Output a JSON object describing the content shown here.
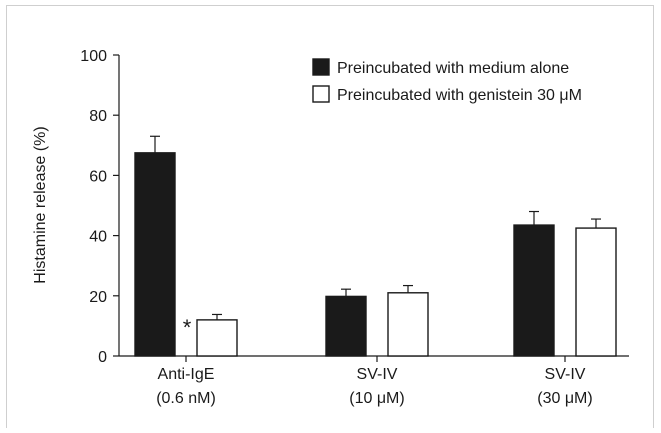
{
  "chart_data": {
    "type": "bar",
    "title": "",
    "ylabel": "Histamine release (%)",
    "xlabel": "",
    "ylim": [
      0,
      100
    ],
    "yticks": [
      "0",
      "20",
      "40",
      "60",
      "80",
      "100"
    ],
    "categories": [
      {
        "line1": "Anti-IgE",
        "line2": "(0.6 nM)"
      },
      {
        "line1": "SV-IV",
        "line2": "(10 μM)"
      },
      {
        "line1": "SV-IV",
        "line2": "(30 μM)"
      }
    ],
    "series": [
      {
        "name": "Preincubated with medium alone",
        "fill": "#1a1a1a",
        "values": [
          67.5,
          19.8,
          43.5
        ],
        "errors": [
          5.5,
          2.4,
          4.5
        ]
      },
      {
        "name": "Preincubated with genistein 30 μM",
        "fill": "#ffffff",
        "values": [
          12.0,
          21.0,
          42.5
        ],
        "errors": [
          1.8,
          2.4,
          3.0
        ]
      }
    ],
    "annotations": [
      {
        "text": "*",
        "category": 0,
        "series": 1
      }
    ],
    "legend_position": "top-right",
    "grid": false
  }
}
